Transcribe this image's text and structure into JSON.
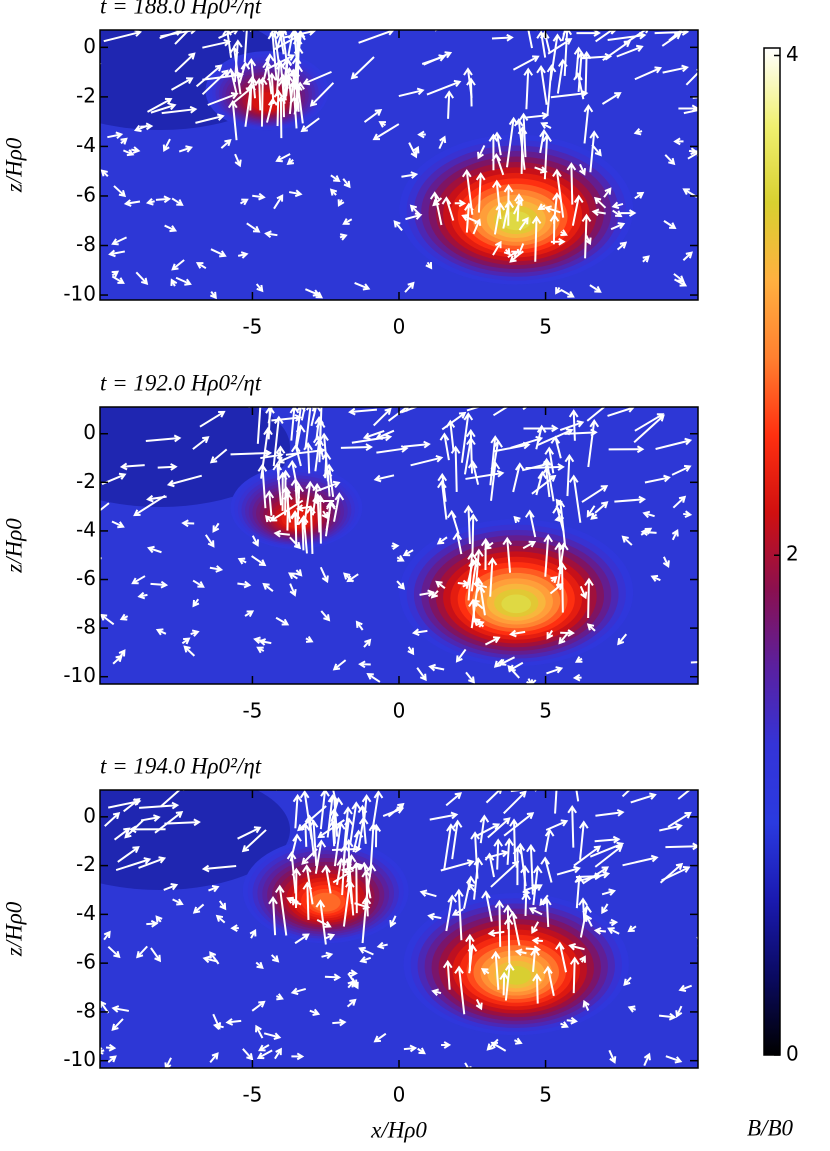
{
  "chart_data": [
    {
      "type": "contour",
      "title": "t = 188.0 Hρ0²/ηt",
      "ylabel": "z/Hρ0",
      "xlim": [
        -10.2,
        10.2
      ],
      "ylim": [
        -10.2,
        0.7
      ],
      "xticks": [
        -5,
        0,
        5
      ],
      "yticks": [
        0,
        -2,
        -4,
        -6,
        -8,
        -10
      ],
      "peaks": [
        {
          "x": -4.5,
          "z": -2.2,
          "B": 2.2
        },
        {
          "x": 4,
          "z": -7,
          "B": 3.5
        }
      ]
    },
    {
      "type": "contour",
      "title": "t = 192.0 Hρ0²/ηt",
      "ylabel": "z/Hρ0",
      "xlim": [
        -10.2,
        10.2
      ],
      "ylim": [
        -10.3,
        1.1
      ],
      "xticks": [
        -5,
        0,
        5
      ],
      "yticks": [
        0,
        -2,
        -4,
        -6,
        -8,
        -10
      ],
      "peaks": [
        {
          "x": -3.5,
          "z": -3.5,
          "B": 2.3
        },
        {
          "x": 4,
          "z": -7,
          "B": 3.5
        }
      ]
    },
    {
      "type": "contour",
      "title": "t = 194.0 Hρ0²/ηt",
      "ylabel": "z/Hρ0",
      "xlabel": "x/Hρ0",
      "xlim": [
        -10.2,
        10.2
      ],
      "ylim": [
        -10.3,
        1.1
      ],
      "xticks": [
        -5,
        0,
        5
      ],
      "yticks": [
        0,
        -2,
        -4,
        -6,
        -8,
        -10
      ],
      "peaks": [
        {
          "x": -2.5,
          "z": -3.5,
          "B": 2.7
        },
        {
          "x": 4,
          "z": -6.5,
          "B": 3.4
        }
      ]
    },
    {
      "type": "colorbar",
      "label": "B/B0",
      "ylim": [
        0,
        4.03
      ],
      "yticks": [
        0,
        2,
        4
      ],
      "colormap": [
        "#000000",
        "#0a0a60",
        "#1a1ab0",
        "#2a3ae0",
        "#3434d8",
        "#5a20a0",
        "#8a1050",
        "#d01010",
        "#ff3010",
        "#ff8030",
        "#ffb040",
        "#d8d030",
        "#f0f070",
        "#ffffff"
      ]
    }
  ]
}
